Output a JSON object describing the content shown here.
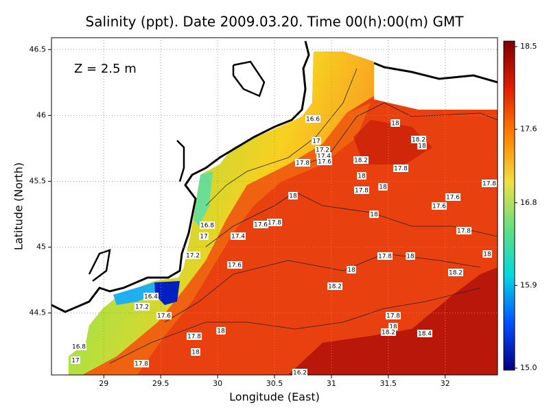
{
  "title": "Salinity (ppt). Date 2009.03.20. Time 00(h):00(m) GMT",
  "xlabel": "Longitude (East)",
  "ylabel": "Latitude (North)",
  "annotation": "Z  =  2.5  m",
  "xlim": [
    28.54,
    32.46
  ],
  "ylim": [
    44.03,
    46.59
  ],
  "xticks": [
    29,
    29.5,
    30,
    30.5,
    31,
    31.5,
    32
  ],
  "yticks": [
    44.5,
    45,
    45.5,
    46,
    46.5
  ],
  "grid": true,
  "colorbar": {
    "lim": [
      15,
      18.5
    ],
    "ticks": [
      {
        "value": 15,
        "label": "15.0"
      },
      15.9,
      16.8,
      17.6,
      18.5
    ],
    "colors": [
      "#000080",
      "#0050ff",
      "#00d8e0",
      "#60e080",
      "#f0e040",
      "#ff8000",
      "#e02000",
      "#800000"
    ]
  },
  "contour_labels": [
    "16.6",
    "17",
    "17.2",
    "17.4",
    "17.6",
    "17.8",
    "18",
    "18.2",
    "18",
    "18.2",
    "17.8",
    "18",
    "17.8",
    "18",
    "17.8",
    "17.6",
    "17.6",
    "18",
    "18",
    "17.8",
    "17.6",
    "16.8",
    "17",
    "17.4",
    "17.8",
    "17.8",
    "18",
    "18",
    "17.2",
    "17.6",
    "18",
    "18.2",
    "18.2",
    "16.4",
    "17.2",
    "17.6",
    "17.8",
    "18",
    "18.2",
    "18.4",
    "17.8",
    "18",
    "18",
    "16.8",
    "17",
    "17.8",
    "16.2"
  ]
}
